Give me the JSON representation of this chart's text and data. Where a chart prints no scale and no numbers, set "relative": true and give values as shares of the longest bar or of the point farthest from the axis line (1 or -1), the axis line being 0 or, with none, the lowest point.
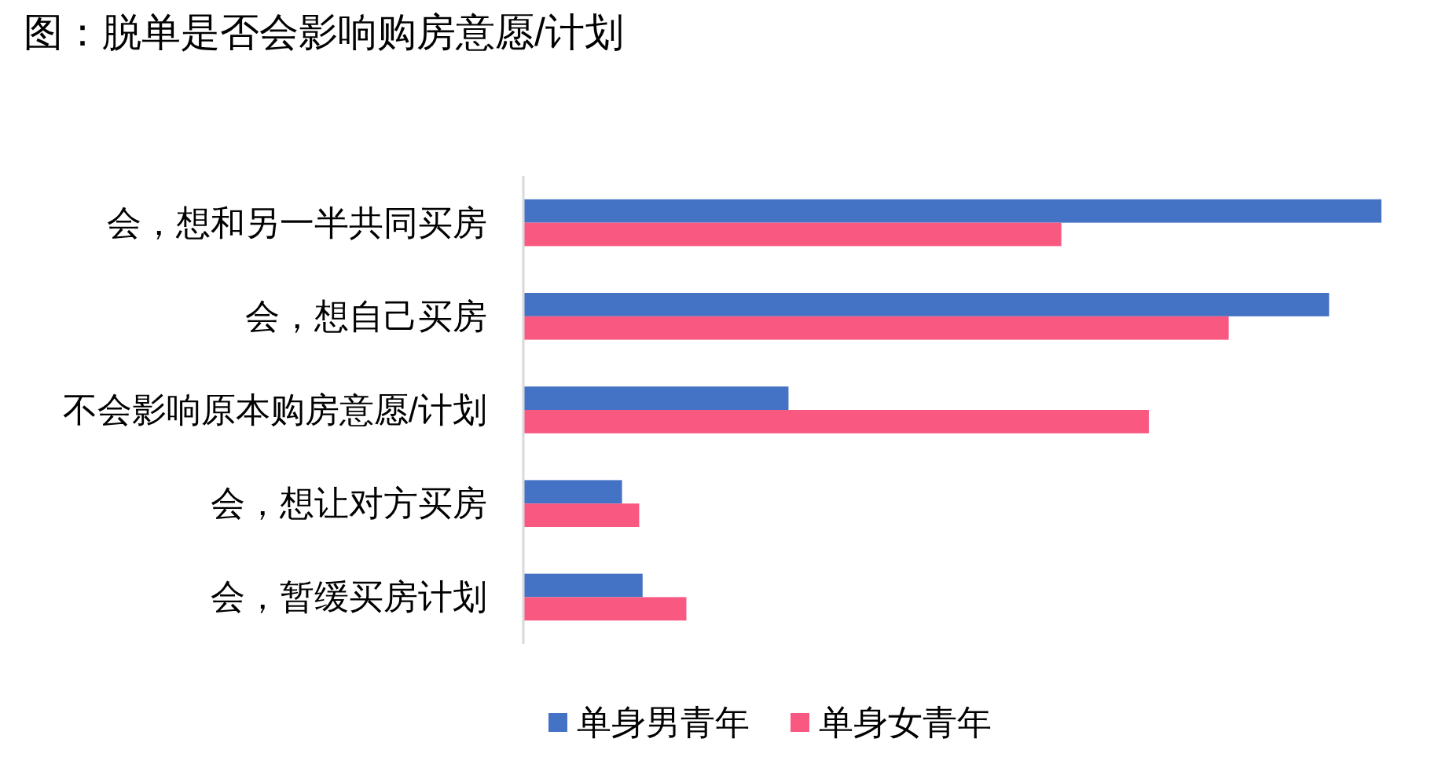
{
  "chart_data": {
    "type": "bar",
    "orientation": "horizontal",
    "relative": true,
    "legend": "bottom",
    "title": "图：脱单是否会影响购房意愿/计划",
    "categories": [
      "会，想和另一半共同买房",
      "会，想自己买房",
      "不会影响原本购房意愿/计划",
      "会，想让对方买房",
      "会，暂缓买房计划"
    ],
    "series": [
      {
        "name": "单身男青年",
        "color": "#4472c4",
        "values": [
          1,
          0.939,
          0.309,
          0.115,
          0.139
        ]
      },
      {
        "name": "单身女青年",
        "color": "#f95880",
        "values": [
          0.627,
          0.822,
          0.729,
          0.135,
          0.19
        ]
      }
    ]
  }
}
